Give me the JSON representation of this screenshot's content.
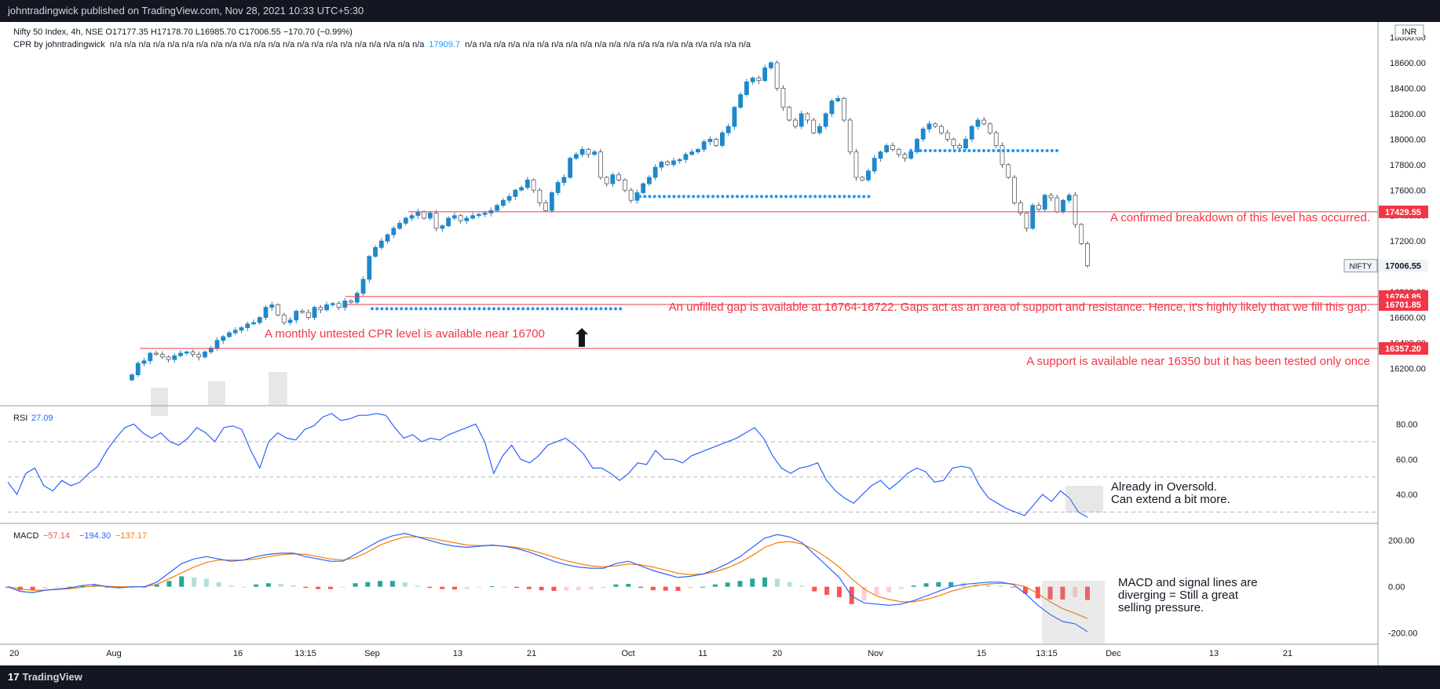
{
  "topbar": {
    "text": "johntradingwick published on TradingView.com, Nov 28, 2021 10:33 UTC+5:30"
  },
  "footer": {
    "brand": "TradingView",
    "brand_icon": "tradingview-logo-icon"
  },
  "header": {
    "line1": "Nifty 50 Index, 4h, NSE  O17177.35  H17178.70  L16985.70  C17006.55  −170.70 (−0.99%)",
    "cpr_prefix": "CPR by johntradingwick",
    "cpr_before": "n/a  n/a  n/a  n/a  n/a  n/a  n/a  n/a  n/a  n/a  n/a  n/a  n/a  n/a  n/a  n/a  n/a  n/a  n/a  n/a  n/a  n/a",
    "cpr_value": "17909.7",
    "cpr_after": "n/a  n/a  n/a  n/a  n/a  n/a  n/a  n/a  n/a  n/a  n/a  n/a  n/a  n/a  n/a  n/a  n/a  n/a  n/a  n/a"
  },
  "currency": "INR",
  "colors": {
    "up": "#26a69a",
    "down": "#ef5350",
    "candle_up": "#1e88c9",
    "candle_down": "#555b65",
    "rsi": "#2962ff",
    "macd": "#2962ff",
    "signal": "#f57c00",
    "level": "#f23645",
    "cpr": "#2196f3"
  },
  "chart_data": [
    {
      "type": "candlestick",
      "title": "Nifty 50 Index, 4h, NSE",
      "ylim": [
        16080,
        18920
      ],
      "y_ticks": [
        16200,
        16400,
        16600,
        16800,
        17000,
        17200,
        17400,
        17600,
        17800,
        18000,
        18200,
        18400,
        18600,
        18800
      ],
      "x_ticks": [
        "20",
        "Aug",
        "16",
        "13:15",
        "Sep",
        "13",
        "21",
        "Oct",
        "11",
        "20",
        "Nov",
        "15",
        "13:15",
        "Dec",
        "13",
        "21"
      ],
      "close_path": [
        16150,
        16240,
        16260,
        16320,
        16310,
        16290,
        16270,
        16300,
        16320,
        16330,
        16310,
        16290,
        16330,
        16360,
        16420,
        16450,
        16480,
        16500,
        16520,
        16550,
        16560,
        16600,
        16680,
        16700,
        16620,
        16560,
        16580,
        16650,
        16640,
        16600,
        16680,
        16660,
        16700,
        16710,
        16680,
        16730,
        16720,
        16790,
        16900,
        17080,
        17150,
        17200,
        17250,
        17300,
        17340,
        17380,
        17400,
        17430,
        17380,
        17420,
        17300,
        17320,
        17380,
        17400,
        17360,
        17380,
        17400,
        17410,
        17420,
        17440,
        17480,
        17520,
        17550,
        17600,
        17620,
        17680,
        17600,
        17500,
        17440,
        17580,
        17660,
        17700,
        17850,
        17880,
        17920,
        17880,
        17900,
        17700,
        17650,
        17720,
        17680,
        17600,
        17520,
        17580,
        17650,
        17700,
        17780,
        17820,
        17800,
        17830,
        17840,
        17880,
        17900,
        17920,
        17980,
        18000,
        17950,
        18050,
        18100,
        18250,
        18350,
        18450,
        18480,
        18460,
        18560,
        18600,
        18400,
        18250,
        18150,
        18100,
        18200,
        18150,
        18050,
        18100,
        18200,
        18300,
        18320,
        18150,
        17900,
        17700,
        17680,
        17750,
        17850,
        17900,
        17950,
        17920,
        17880,
        17850,
        17900,
        18000,
        18080,
        18120,
        18100,
        18050,
        18000,
        17950,
        17930,
        18000,
        18100,
        18150,
        18120,
        18050,
        17950,
        17800,
        17700,
        17500,
        17420,
        17300,
        17480,
        17450,
        17560,
        17540,
        17430,
        17520,
        17560,
        17330,
        17180,
        17006.55
      ],
      "levels": [
        {
          "value": 17429.55,
          "label": "17429.55"
        },
        {
          "value": 16764.85,
          "label": "16764.85"
        },
        {
          "value": 16701.85,
          "label": "16701.85"
        },
        {
          "value": 16357.2,
          "label": "16357.20"
        }
      ],
      "last_price": {
        "symbol": "NIFTY",
        "value": "17006.55"
      },
      "cpr_levels": [
        16700,
        17550,
        17909.7
      ],
      "annotations": [
        "A confirmed breakdown of this level has occurred.",
        "An unfilled gap is available at 16764-16722. Gaps act as an area of support and resistance. Hence, it's highly likely that we fill this gap.",
        "A monthly untested CPR level is available near 16700",
        "A support is available near 16350 but it has been tested only once"
      ]
    },
    {
      "type": "line",
      "title": "RSI",
      "value_label": "27.09",
      "ylim": [
        24,
        90
      ],
      "y_ticks": [
        40,
        60,
        80
      ],
      "bands": [
        70,
        50,
        30
      ],
      "values": [
        47,
        40,
        52,
        55,
        45,
        42,
        48,
        45,
        47,
        52,
        56,
        65,
        72,
        78,
        80,
        75,
        72,
        75,
        70,
        68,
        72,
        78,
        75,
        70,
        78,
        79,
        77,
        65,
        55,
        70,
        75,
        72,
        71,
        77,
        79,
        84,
        86,
        82,
        83,
        85,
        85,
        86,
        85,
        78,
        72,
        74,
        70,
        72,
        71,
        74,
        76,
        78,
        80,
        70,
        52,
        62,
        68,
        60,
        58,
        62,
        68,
        70,
        72,
        68,
        63,
        55,
        55,
        52,
        48,
        52,
        58,
        57,
        65,
        60,
        60,
        58,
        62,
        64,
        66,
        68,
        70,
        72,
        75,
        78,
        72,
        62,
        55,
        52,
        55,
        56,
        58,
        48,
        42,
        38,
        35,
        40,
        45,
        48,
        43,
        47,
        52,
        55,
        53,
        47,
        48,
        55,
        56,
        55,
        45,
        38,
        35,
        32,
        30,
        28,
        34,
        40,
        36,
        42,
        38,
        30,
        27.09
      ],
      "annotation_lines": [
        "Already in Oversold.",
        "Can extend a bit more."
      ]
    },
    {
      "type": "histogram+line",
      "title": "MACD",
      "values_label": [
        "−57.14",
        "−194.30",
        "−137.17"
      ],
      "ylim": [
        -245,
        270
      ],
      "y_ticks": [
        200,
        0,
        -200
      ],
      "macd": [
        0,
        -20,
        -25,
        -15,
        -10,
        -5,
        5,
        10,
        0,
        -5,
        0,
        0,
        20,
        60,
        100,
        120,
        130,
        120,
        110,
        115,
        130,
        140,
        145,
        145,
        130,
        120,
        110,
        110,
        140,
        170,
        200,
        220,
        230,
        215,
        200,
        185,
        175,
        170,
        175,
        180,
        175,
        165,
        150,
        130,
        110,
        95,
        85,
        80,
        80,
        100,
        110,
        90,
        70,
        55,
        40,
        45,
        55,
        75,
        100,
        130,
        170,
        210,
        225,
        215,
        190,
        140,
        90,
        40,
        -40,
        -70,
        -75,
        -80,
        -75,
        -60,
        -40,
        -20,
        0,
        10,
        15,
        20,
        20,
        10,
        -30,
        -80,
        -120,
        -150,
        -160,
        -194.3
      ],
      "signal": [
        0,
        -10,
        -15,
        -15,
        -12,
        -8,
        -2,
        3,
        2,
        0,
        0,
        0,
        10,
        35,
        60,
        85,
        105,
        115,
        115,
        115,
        120,
        130,
        138,
        142,
        140,
        130,
        120,
        115,
        125,
        150,
        180,
        200,
        215,
        215,
        210,
        200,
        190,
        180,
        178,
        178,
        175,
        170,
        160,
        145,
        128,
        112,
        100,
        90,
        86,
        90,
        98,
        95,
        85,
        72,
        58,
        52,
        55,
        65,
        82,
        105,
        135,
        170,
        190,
        195,
        185,
        160,
        125,
        85,
        35,
        -10,
        -40,
        -55,
        -65,
        -65,
        -55,
        -40,
        -20,
        -5,
        5,
        12,
        15,
        12,
        0,
        -30,
        -65,
        -95,
        -115,
        -137.17
      ],
      "hist": [
        -5,
        -15,
        -15,
        -8,
        -3,
        0,
        5,
        7,
        -2,
        -5,
        0,
        0,
        10,
        25,
        45,
        40,
        35,
        20,
        5,
        0,
        10,
        15,
        12,
        6,
        -5,
        -10,
        -10,
        -5,
        15,
        20,
        25,
        25,
        20,
        5,
        -5,
        -10,
        -12,
        -10,
        -3,
        2,
        0,
        -5,
        -10,
        -15,
        -18,
        -17,
        -15,
        -12,
        -6,
        10,
        12,
        -5,
        -15,
        -17,
        -18,
        -7,
        0,
        10,
        18,
        25,
        35,
        40,
        35,
        20,
        5,
        -20,
        -35,
        -45,
        -75,
        -60,
        -35,
        -25,
        -10,
        5,
        15,
        20,
        20,
        15,
        10,
        8,
        5,
        -2,
        -30,
        -50,
        -55,
        -55,
        -45,
        -57.14
      ],
      "annotation_lines": [
        "MACD and signal lines are",
        "diverging = Still a great",
        "selling pressure."
      ]
    }
  ]
}
